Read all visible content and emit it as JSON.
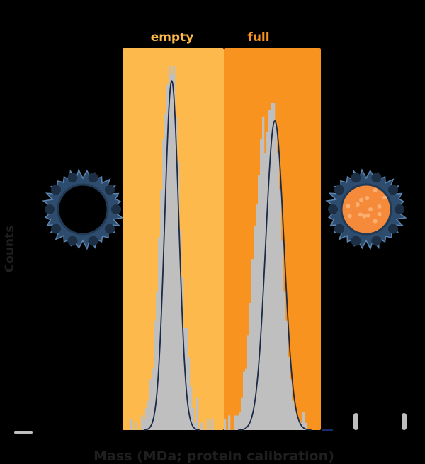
{
  "chart_data": {
    "type": "bar",
    "xlabel": "Mass (MDa; protein calibration)",
    "ylabel": "Counts",
    "ylim": [
      0,
      105
    ],
    "grid": false,
    "regions": [
      {
        "label": "empty",
        "color": "#FDB94C",
        "label_color": "#FDB94A"
      },
      {
        "label": "full",
        "color": "#F7931E",
        "label_color": "#F7931E"
      }
    ],
    "bar_color": "#BFBFBF",
    "fit_color": "#1B2A49",
    "values": [
      0,
      0,
      0,
      3,
      0,
      2,
      0,
      0,
      4,
      3,
      6,
      8,
      14,
      17,
      30,
      38,
      53,
      66,
      80,
      87,
      95,
      100,
      98,
      100,
      86,
      74,
      55,
      42,
      28,
      28,
      20,
      12,
      6,
      2,
      9,
      0,
      2,
      0,
      0,
      3,
      0,
      3,
      0,
      0,
      0,
      0,
      0,
      3,
      0,
      4,
      0,
      0,
      4,
      4,
      5,
      9,
      16,
      17,
      26,
      35,
      47,
      56,
      62,
      70,
      80,
      86,
      76,
      82,
      88,
      90,
      90,
      84,
      76,
      66,
      52,
      38,
      30,
      20,
      14,
      8,
      6,
      4,
      3,
      2,
      5,
      2,
      0,
      0,
      0,
      0,
      0,
      0
    ],
    "fits": [
      {
        "region": "empty",
        "peak": 96,
        "center_bin": 22,
        "sigma_bins": 3.3
      },
      {
        "region": "full",
        "peak": 85,
        "center_bin": 70.5,
        "sigma_bins": 4.3
      }
    ],
    "icons": [
      "empty-capsid-icon",
      "full-capsid-icon"
    ]
  }
}
